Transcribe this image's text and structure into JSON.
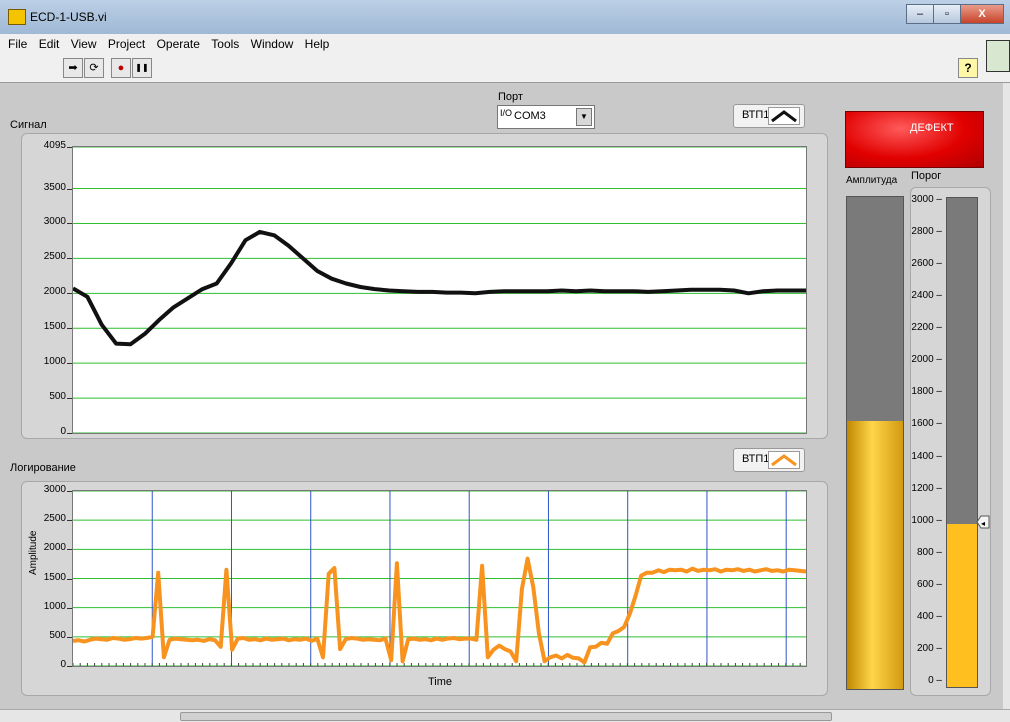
{
  "window": {
    "title": "ECD-1-USB.vi",
    "min_icon": "minimize-icon",
    "max_icon": "maximize-icon",
    "close_label": "X"
  },
  "menu": [
    "File",
    "Edit",
    "View",
    "Project",
    "Operate",
    "Tools",
    "Window",
    "Help"
  ],
  "toolbar": {
    "run": "➡",
    "run_cont": "⟳",
    "abort": "●",
    "pause": "❚❚",
    "help": "?"
  },
  "port": {
    "label": "Порт",
    "io": "I/O",
    "value": "COM3"
  },
  "defect": {
    "label": "ДЕФЕКТ",
    "color": "#e10000"
  },
  "chart_data": [
    {
      "type": "line",
      "title": "Сигнал",
      "legend": "ВТП1",
      "color": "#111111",
      "ylim": [
        0,
        4095
      ],
      "yticks": [
        "0",
        "500",
        "1000",
        "1500",
        "2000",
        "2500",
        "3000",
        "3500",
        "4095"
      ],
      "y": [
        2070,
        1950,
        1550,
        1280,
        1270,
        1420,
        1620,
        1800,
        1930,
        2060,
        2140,
        2430,
        2760,
        2880,
        2830,
        2680,
        2500,
        2320,
        2210,
        2140,
        2090,
        2060,
        2040,
        2030,
        2020,
        2020,
        2010,
        2010,
        2000,
        2020,
        2030,
        2030,
        2030,
        2030,
        2040,
        2030,
        2040,
        2030,
        2030,
        2030,
        2020,
        2030,
        2040,
        2050,
        2050,
        2050,
        2040,
        2000,
        2030,
        2040,
        2040,
        2040
      ]
    },
    {
      "type": "line",
      "title": "Логирование",
      "legend": "ВТП1",
      "color": "#f7931e",
      "xlabel": "Time",
      "ylabel": "Amplitude",
      "ylim": [
        0,
        3000
      ],
      "yticks": [
        "0",
        "500",
        "1000",
        "1500",
        "2000",
        "2500",
        "3000"
      ],
      "y": [
        430,
        440,
        420,
        450,
        470,
        460,
        450,
        480,
        470,
        450,
        460,
        480,
        470,
        480,
        500,
        1600,
        150,
        450,
        470,
        460,
        450,
        440,
        450,
        430,
        460,
        440,
        330,
        1650,
        280,
        470,
        480,
        450,
        460,
        440,
        470,
        450,
        460,
        470,
        440,
        460,
        450,
        470,
        430,
        470,
        150,
        1580,
        1680,
        290,
        460,
        480,
        470,
        450,
        460,
        450,
        440,
        470,
        100,
        1760,
        80,
        460,
        470,
        450,
        460,
        440,
        470,
        450,
        470,
        480,
        460,
        470,
        470,
        450,
        1720,
        150,
        280,
        350,
        290,
        250,
        80,
        1320,
        1840,
        1350,
        560,
        80,
        150,
        180,
        130,
        190,
        140,
        130,
        60,
        320,
        330,
        400,
        380,
        560,
        600,
        670,
        900,
        1200,
        1550,
        1600,
        1600,
        1640,
        1610,
        1650,
        1640,
        1650,
        1620,
        1670,
        1630,
        1650,
        1640,
        1660,
        1620,
        1650,
        1640,
        1660,
        1630,
        1650,
        1620,
        1640,
        1660,
        1630,
        1640,
        1620,
        1650,
        1640,
        1630,
        1620
      ]
    }
  ],
  "amplitude": {
    "label": "Амплитуда",
    "level": 0.545,
    "color": "#ffc21e"
  },
  "threshold": {
    "label": "Порог",
    "value": 1000,
    "max": 3000,
    "ticks": [
      "0",
      "200",
      "400",
      "600",
      "800",
      "1000",
      "1200",
      "1400",
      "1600",
      "1800",
      "2000",
      "2200",
      "2400",
      "2600",
      "2800",
      "3000"
    ],
    "color": "#ffbf1e"
  }
}
